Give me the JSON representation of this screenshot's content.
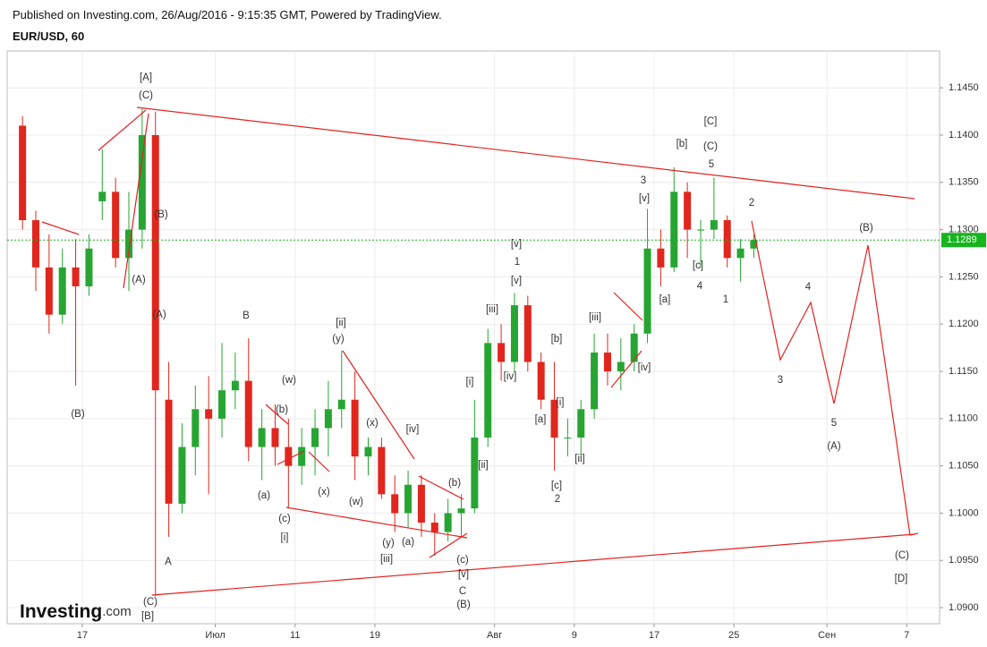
{
  "header": {
    "published": "Published on Investing.com, 26/Aug/2016 - 9:15:35 GMT, Powered by TradingView."
  },
  "logo": {
    "name": "Investing",
    "suffix": ".com"
  },
  "chart_data": {
    "type": "candlestick",
    "title": "EUR/USD, 60",
    "categories": [
      null,
      null,
      null,
      null,
      null,
      "17",
      null,
      null,
      null,
      null,
      null,
      null,
      null,
      null,
      null,
      "Июл",
      null,
      null,
      null,
      null,
      null,
      "11",
      null,
      null,
      null,
      null,
      null,
      "19",
      null,
      null,
      null,
      null,
      null,
      null,
      null,
      null,
      "Авг",
      null,
      null,
      null,
      null,
      null,
      "9",
      null,
      null,
      null,
      null,
      null,
      "17",
      null,
      null,
      null,
      null,
      null,
      "25",
      null,
      null,
      null,
      null,
      null,
      null,
      "Сен",
      null,
      null,
      null,
      null,
      null,
      "7",
      null
    ],
    "open": [
      1.141,
      1.131,
      1.126,
      1.121,
      1.126,
      1.124,
      1.133,
      1.134,
      1.127,
      1.13,
      1.14,
      1.112,
      1.101,
      1.107,
      1.111,
      1.11,
      1.113,
      1.114,
      1.107,
      1.109,
      1.107,
      1.105,
      1.107,
      1.109,
      1.111,
      1.112,
      1.106,
      1.107,
      1.102,
      1.1,
      1.103,
      1.099,
      1.098,
      1.1,
      1.1005,
      1.108,
      1.118,
      1.116,
      1.122,
      1.116,
      1.112,
      1.108,
      1.108,
      1.111,
      1.117,
      1.115,
      1.116,
      1.119,
      1.128,
      1.126,
      1.134,
      1.13,
      1.13,
      1.131,
      1.127,
      1.128,
      null,
      null,
      null,
      null,
      null,
      null,
      null,
      null,
      null,
      null,
      null,
      null,
      null
    ],
    "high": [
      1.142,
      1.132,
      1.1295,
      1.128,
      1.129,
      1.1295,
      1.1385,
      1.1355,
      1.134,
      1.1428,
      1.1425,
      1.116,
      1.1095,
      1.1135,
      1.1145,
      1.118,
      1.117,
      1.1185,
      1.111,
      1.1115,
      1.11,
      1.109,
      1.111,
      1.114,
      1.1172,
      1.115,
      1.108,
      1.108,
      1.104,
      1.1045,
      1.104,
      1.1,
      1.1015,
      1.102,
      1.112,
      1.1195,
      1.12,
      1.1233,
      1.123,
      1.117,
      1.116,
      1.11,
      1.112,
      1.119,
      1.119,
      1.1185,
      1.12,
      1.1322,
      1.13,
      1.1366,
      1.135,
      1.131,
      1.1355,
      1.1315,
      1.129,
      1.1295,
      null,
      null,
      null,
      null,
      null,
      null,
      null,
      null,
      null,
      null,
      null,
      null,
      null
    ],
    "low": [
      1.13,
      1.1235,
      1.119,
      1.12,
      1.1135,
      1.123,
      1.131,
      1.126,
      1.1235,
      1.128,
      1.0912,
      1.0975,
      1.1,
      1.104,
      1.102,
      1.108,
      1.111,
      1.1055,
      1.1035,
      1.105,
      1.1005,
      1.103,
      1.104,
      1.106,
      1.109,
      1.1035,
      1.104,
      1.1015,
      1.098,
      1.0985,
      1.0975,
      1.0955,
      1.097,
      1.0975,
      1.1,
      1.107,
      1.114,
      1.115,
      1.115,
      1.111,
      1.1045,
      1.106,
      1.106,
      1.11,
      1.1135,
      1.113,
      1.115,
      1.118,
      1.124,
      1.1255,
      1.127,
      1.126,
      1.129,
      1.126,
      1.1245,
      1.127,
      null,
      null,
      null,
      null,
      null,
      null,
      null,
      null,
      null,
      null,
      null,
      null,
      null
    ],
    "close": [
      1.131,
      1.126,
      1.121,
      1.126,
      1.124,
      1.128,
      1.134,
      1.127,
      1.13,
      1.14,
      1.113,
      1.101,
      1.107,
      1.111,
      1.11,
      1.113,
      1.114,
      1.107,
      1.109,
      1.107,
      1.105,
      1.107,
      1.109,
      1.111,
      1.112,
      1.106,
      1.107,
      1.102,
      1.1,
      1.103,
      1.099,
      1.098,
      1.1,
      1.1005,
      1.108,
      1.118,
      1.116,
      1.122,
      1.116,
      1.112,
      1.108,
      1.108,
      1.111,
      1.117,
      1.115,
      1.116,
      1.119,
      1.128,
      1.126,
      1.134,
      1.13,
      1.13,
      1.131,
      1.127,
      1.128,
      1.1289,
      null,
      null,
      null,
      null,
      null,
      null,
      null,
      null,
      null,
      null,
      null,
      null,
      null
    ],
    "up_color": "#26a532",
    "down_color": "#e0261d",
    "ylim": [
      1.0883,
      1.1489
    ],
    "yticks": [
      {
        "value": 1.09,
        "label": "1.0900"
      },
      {
        "value": 1.095,
        "label": "1.0950"
      },
      {
        "value": 1.1,
        "label": "1.1000"
      },
      {
        "value": 1.105,
        "label": "1.1050"
      },
      {
        "value": 1.11,
        "label": "1.1100"
      },
      {
        "value": 1.115,
        "label": "1.1150"
      },
      {
        "value": 1.12,
        "label": "1.1200"
      },
      {
        "value": 1.125,
        "label": "1.1250"
      },
      {
        "value": 1.13,
        "label": "1.1300"
      },
      {
        "value": 1.135,
        "label": "1.1350"
      },
      {
        "value": 1.14,
        "label": "1.1400"
      },
      {
        "value": 1.145,
        "label": "1.1450"
      }
    ],
    "grid": true,
    "last_price": {
      "value": 1.1289,
      "label": "1.1289",
      "color": "#16b51e"
    },
    "annotations": [
      "(A)",
      "[A]",
      "(C)",
      "(B)",
      "(A)",
      "(A)",
      "(B)",
      "A",
      "(C)",
      "[B]",
      "B",
      "(a)",
      "(b)",
      "(c)",
      "[i]",
      "(w)",
      "(x)",
      "(w)",
      "(y)",
      "[ii]",
      "(x)",
      "[iv]",
      "(y)",
      "(a)",
      "[iii]",
      "(b)",
      "(c)",
      "[v]",
      "C",
      "(B)",
      "[i]",
      "[ii]",
      "[iii]",
      "[iv]",
      "[v]",
      "1",
      "[v]",
      "[b]",
      "[i]",
      "[a]",
      "[ii]",
      "[c]",
      "2",
      "[iii]",
      "[iv]",
      "[a]",
      "3",
      "[v]",
      "[b]",
      "[C]",
      "(C)",
      "5",
      "2",
      "[c]",
      "4",
      "1",
      "4",
      "3",
      "5",
      "(A)",
      "(B)",
      "(C)",
      "[D]"
    ]
  }
}
